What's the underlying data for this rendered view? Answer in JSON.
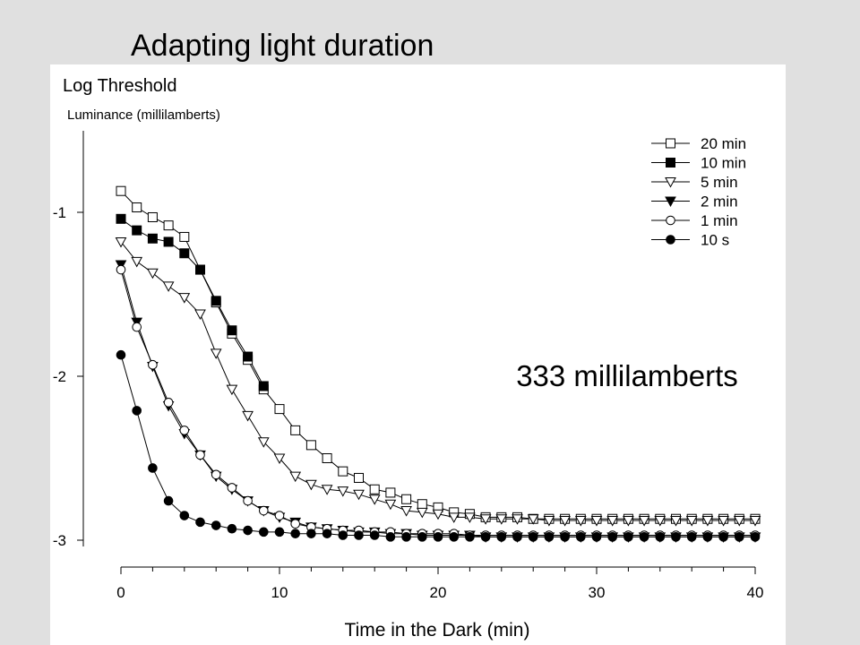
{
  "slide": {
    "title": "Adapting light duration"
  },
  "chart_data": {
    "type": "line",
    "ylabel": "Log Threshold",
    "ysublabel": "Luminance (millilamberts)",
    "xlabel": "Time in the Dark (min)",
    "annotation": "333 millilamberts",
    "xlim": [
      0,
      40
    ],
    "ylim": [
      -3,
      -0.5
    ],
    "xticks": [
      0,
      10,
      20,
      30,
      40
    ],
    "xtick_labels": [
      "0",
      "10",
      "20",
      "30",
      "40"
    ],
    "yticks": [
      -1,
      -2,
      -3
    ],
    "ytick_labels": [
      "-1",
      "-2",
      "-3"
    ],
    "grid": false,
    "legend_position": "top-right",
    "series": [
      {
        "name": "20 min",
        "marker": "square-open",
        "color": "#000000",
        "x": [
          0,
          1,
          2,
          3,
          4,
          5,
          6,
          7,
          8,
          9,
          10,
          11,
          12,
          13,
          14,
          15,
          16,
          17,
          18,
          19,
          20,
          21,
          22,
          23,
          24,
          25,
          26,
          27,
          28,
          29,
          30,
          31,
          32,
          33,
          34,
          35,
          36,
          37,
          38,
          39,
          40
        ],
        "y": [
          -0.87,
          -0.97,
          -1.03,
          -1.08,
          -1.15,
          -1.35,
          -1.55,
          -1.74,
          -1.9,
          -2.08,
          -2.2,
          -2.33,
          -2.42,
          -2.5,
          -2.58,
          -2.62,
          -2.69,
          -2.71,
          -2.75,
          -2.78,
          -2.8,
          -2.83,
          -2.84,
          -2.86,
          -2.86,
          -2.86,
          -2.87,
          -2.87,
          -2.87,
          -2.87,
          -2.87,
          -2.87,
          -2.87,
          -2.87,
          -2.87,
          -2.87,
          -2.87,
          -2.87,
          -2.87,
          -2.87,
          -2.87
        ]
      },
      {
        "name": "10 min",
        "marker": "square-filled",
        "color": "#000000",
        "x": [
          0,
          1,
          2,
          3,
          4,
          5,
          6,
          7,
          8,
          9
        ],
        "y": [
          -1.04,
          -1.11,
          -1.16,
          -1.18,
          -1.25,
          -1.35,
          -1.54,
          -1.72,
          -1.88,
          -2.06
        ]
      },
      {
        "name": "5 min",
        "marker": "triangle-down-open",
        "color": "#000000",
        "x": [
          0,
          1,
          2,
          3,
          4,
          5,
          6,
          7,
          8,
          9,
          10,
          11,
          12,
          13,
          14,
          15,
          16,
          17,
          18,
          19,
          20,
          21,
          22,
          23,
          24,
          25,
          26,
          27,
          28,
          29,
          30,
          31,
          32,
          33,
          34,
          35,
          36,
          37,
          38,
          39,
          40
        ],
        "y": [
          -1.18,
          -1.3,
          -1.37,
          -1.45,
          -1.52,
          -1.62,
          -1.86,
          -2.08,
          -2.24,
          -2.4,
          -2.5,
          -2.61,
          -2.66,
          -2.69,
          -2.7,
          -2.72,
          -2.75,
          -2.78,
          -2.82,
          -2.83,
          -2.84,
          -2.86,
          -2.86,
          -2.87,
          -2.87,
          -2.87,
          -2.87,
          -2.88,
          -2.88,
          -2.88,
          -2.88,
          -2.88,
          -2.88,
          -2.88,
          -2.88,
          -2.88,
          -2.88,
          -2.88,
          -2.88,
          -2.88,
          -2.88
        ]
      },
      {
        "name": "2 min",
        "marker": "triangle-down-filled",
        "color": "#000000",
        "x": [
          0,
          1,
          2,
          3,
          4,
          5,
          6,
          7,
          8,
          9,
          10,
          11,
          12,
          13,
          14,
          15,
          16,
          17,
          18,
          19,
          20,
          21,
          22,
          23,
          24,
          25,
          26,
          27,
          28,
          29,
          30,
          31,
          32,
          33,
          34,
          35,
          36,
          37,
          38,
          39,
          40
        ],
        "y": [
          -1.32,
          -1.67,
          -1.94,
          -2.18,
          -2.35,
          -2.48,
          -2.61,
          -2.69,
          -2.76,
          -2.82,
          -2.86,
          -2.89,
          -2.92,
          -2.93,
          -2.94,
          -2.95,
          -2.95,
          -2.96,
          -2.96,
          -2.97,
          -2.97,
          -2.97,
          -2.97,
          -2.98,
          -2.98,
          -2.98,
          -2.98,
          -2.98,
          -2.98,
          -2.98,
          -2.98,
          -2.98,
          -2.98,
          -2.98,
          -2.98,
          -2.98,
          -2.98,
          -2.98,
          -2.98,
          -2.98,
          -2.98
        ]
      },
      {
        "name": "1 min",
        "marker": "circle-open",
        "color": "#000000",
        "x": [
          0,
          1,
          2,
          3,
          4,
          5,
          6,
          7,
          8,
          9,
          10,
          11,
          12,
          13,
          14,
          15,
          16,
          17,
          18,
          19,
          20,
          21,
          22,
          23,
          24,
          25,
          26,
          27,
          28,
          29,
          30,
          31,
          32,
          33,
          34,
          35,
          36,
          37,
          38,
          39,
          40
        ],
        "y": [
          -1.35,
          -1.7,
          -1.93,
          -2.16,
          -2.33,
          -2.48,
          -2.6,
          -2.68,
          -2.76,
          -2.82,
          -2.85,
          -2.9,
          -2.92,
          -2.93,
          -2.94,
          -2.94,
          -2.95,
          -2.95,
          -2.96,
          -2.96,
          -2.96,
          -2.96,
          -2.97,
          -2.97,
          -2.97,
          -2.97,
          -2.97,
          -2.97,
          -2.97,
          -2.97,
          -2.97,
          -2.97,
          -2.97,
          -2.97,
          -2.97,
          -2.97,
          -2.97,
          -2.97,
          -2.97,
          -2.97,
          -2.97
        ]
      },
      {
        "name": "10 s",
        "marker": "circle-filled",
        "color": "#000000",
        "x": [
          0,
          1,
          2,
          3,
          4,
          5,
          6,
          7,
          8,
          9,
          10,
          11,
          12,
          13,
          14,
          15,
          16,
          17,
          18,
          19,
          20,
          21,
          22,
          23,
          24,
          25,
          26,
          27,
          28,
          29,
          30,
          31,
          32,
          33,
          34,
          35,
          36,
          37,
          38,
          39,
          40
        ],
        "y": [
          -1.87,
          -2.21,
          -2.56,
          -2.76,
          -2.85,
          -2.89,
          -2.91,
          -2.93,
          -2.94,
          -2.95,
          -2.95,
          -2.96,
          -2.96,
          -2.96,
          -2.97,
          -2.97,
          -2.97,
          -2.98,
          -2.98,
          -2.98,
          -2.98,
          -2.98,
          -2.98,
          -2.98,
          -2.98,
          -2.98,
          -2.98,
          -2.98,
          -2.98,
          -2.98,
          -2.98,
          -2.98,
          -2.98,
          -2.98,
          -2.98,
          -2.98,
          -2.98,
          -2.98,
          -2.98,
          -2.98,
          -2.98
        ]
      }
    ]
  }
}
